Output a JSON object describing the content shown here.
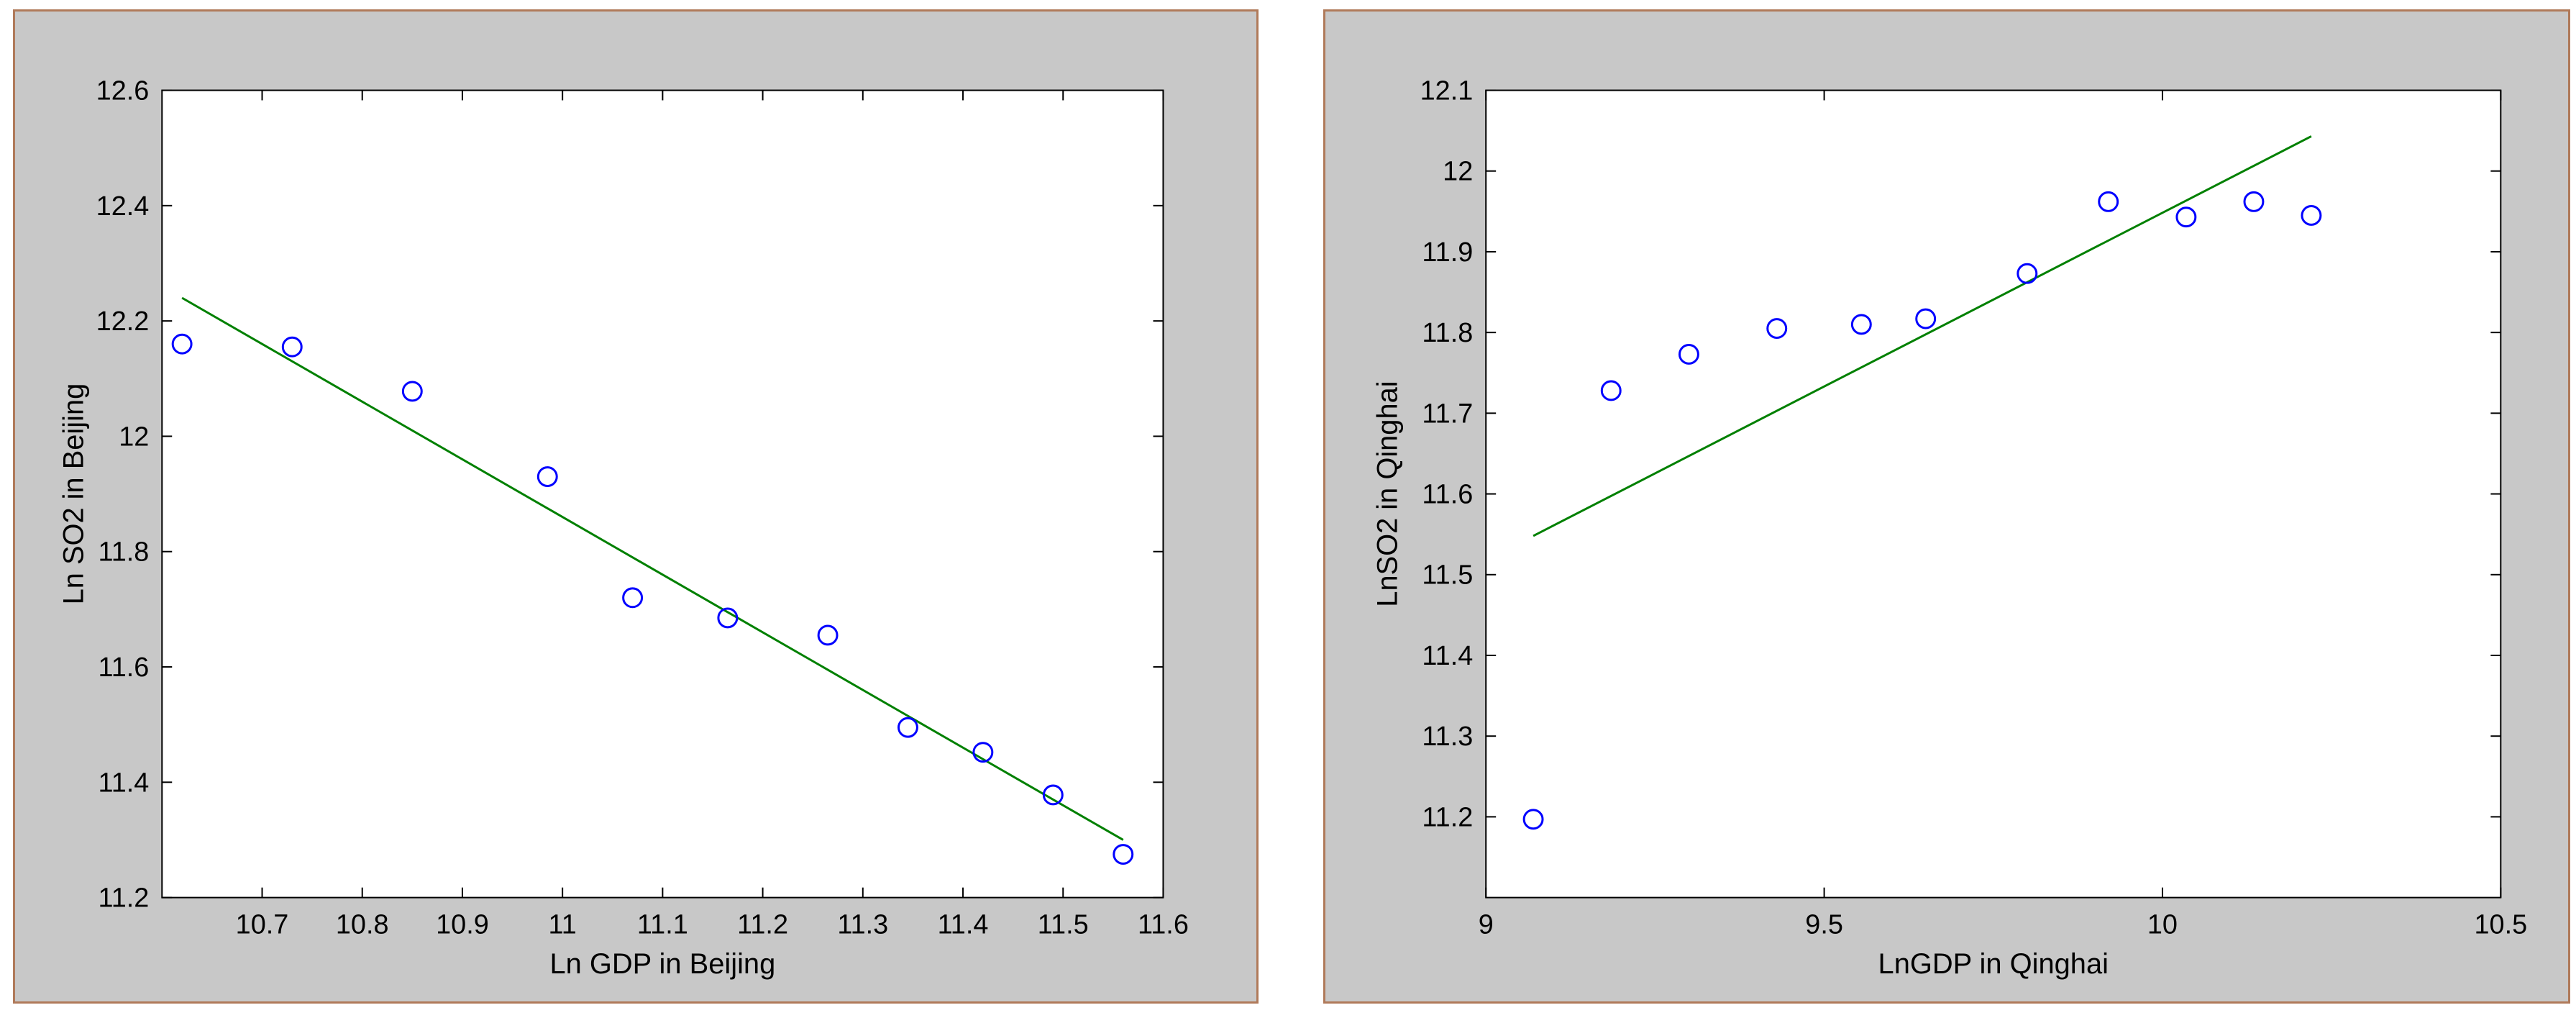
{
  "colors": {
    "background": "#c8c8c8",
    "axes_face": "#ffffff",
    "marker": "#0000ff",
    "fit_line": "#008000",
    "panel_border": "#b07a5a"
  },
  "chart_data": [
    {
      "type": "scatter",
      "xlabel": "Ln GDP in Beijing",
      "ylabel": "Ln SO2 in Beijing",
      "xlim": [
        10.6,
        11.6
      ],
      "ylim": [
        11.2,
        12.6
      ],
      "xticks": [
        "10.7",
        "10.8",
        "10.9",
        "11",
        "11.1",
        "11.2",
        "11.3",
        "11.4",
        "11.5",
        "11.6"
      ],
      "xtick_values": [
        10.7,
        10.8,
        10.9,
        11.0,
        11.1,
        11.2,
        11.3,
        11.4,
        11.5,
        11.6
      ],
      "yticks": [
        "11.2",
        "11.4",
        "11.6",
        "11.8",
        "12",
        "12.2",
        "12.4",
        "12.6"
      ],
      "ytick_values": [
        11.2,
        11.4,
        11.6,
        11.8,
        12.0,
        12.2,
        12.4,
        12.6
      ],
      "points": {
        "x": [
          10.62,
          10.73,
          10.85,
          10.985,
          11.07,
          11.165,
          11.265,
          11.345,
          11.42,
          11.49,
          11.56
        ],
        "y": [
          12.16,
          12.155,
          12.078,
          11.93,
          11.72,
          11.685,
          11.655,
          11.495,
          11.452,
          11.378,
          11.275
        ]
      },
      "fit_line": {
        "x": [
          10.62,
          11.56
        ],
        "y": [
          12.24,
          11.3
        ]
      },
      "grid": false
    },
    {
      "type": "scatter",
      "xlabel": "LnGDP in Qinghai",
      "ylabel": "LnSO2 in Qinghai",
      "xlim": [
        9.0,
        10.5
      ],
      "ylim": [
        11.1,
        12.1
      ],
      "xticks": [
        "9",
        "9.5",
        "10",
        "10.5"
      ],
      "xtick_values": [
        9.0,
        9.5,
        10.0,
        10.5
      ],
      "yticks": [
        "11.2",
        "11.3",
        "11.4",
        "11.5",
        "11.6",
        "11.7",
        "11.8",
        "11.9",
        "12",
        "12.1"
      ],
      "ytick_values": [
        11.2,
        11.3,
        11.4,
        11.5,
        11.6,
        11.7,
        11.8,
        11.9,
        12.0,
        12.1
      ],
      "points": {
        "x": [
          9.07,
          9.185,
          9.3,
          9.43,
          9.555,
          9.65,
          9.8,
          9.92,
          10.035,
          10.135,
          10.22
        ],
        "y": [
          11.197,
          11.728,
          11.773,
          11.805,
          11.81,
          11.817,
          11.873,
          11.962,
          11.943,
          11.962,
          11.945
        ]
      },
      "fit_line": {
        "x": [
          9.07,
          10.22
        ],
        "y": [
          11.548,
          12.043
        ]
      },
      "grid": false
    }
  ]
}
